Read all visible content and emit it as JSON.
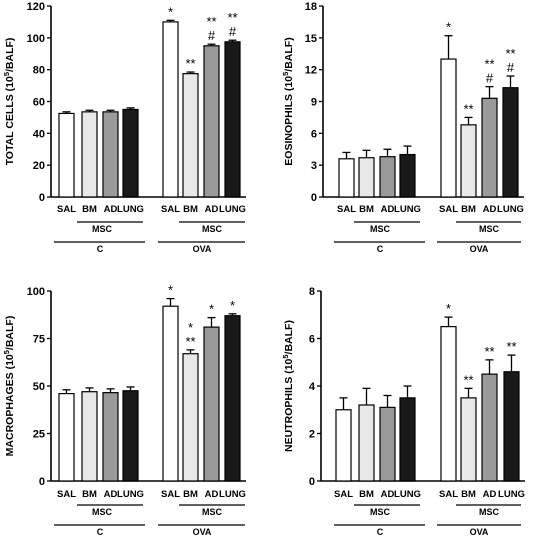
{
  "chart_data": [
    {
      "type": "bar",
      "ylabel_main": "TOTAL CELLS (10",
      "ylabel_sup": "5",
      "ylabel_end": "/BALF)",
      "ylim": [
        0,
        120
      ],
      "yticks": [
        0,
        20,
        40,
        60,
        80,
        100,
        120
      ],
      "categories": [
        "SAL",
        "BM",
        "AD",
        "LUNG",
        "SAL",
        "BM",
        "AD",
        "LUNG"
      ],
      "values": [
        52.5,
        53.5,
        53.5,
        55,
        110,
        77.5,
        95,
        97.5
      ],
      "errors": [
        1,
        1,
        1,
        1,
        1,
        1,
        1,
        1
      ],
      "fills": [
        "#ffffff",
        "#e8e8e8",
        "#9a9a9a",
        "#1a1a1a",
        "#ffffff",
        "#e8e8e8",
        "#9a9a9a",
        "#1a1a1a"
      ],
      "sig_top": [
        "",
        "",
        "",
        "",
        "*",
        "",
        "**",
        "**"
      ],
      "sig_mid": [
        "",
        "",
        "",
        "",
        "",
        "**",
        "#",
        "#"
      ],
      "group_sub_label": "MSC",
      "group_labels": [
        "C",
        "OVA"
      ]
    },
    {
      "type": "bar",
      "ylabel_main": "EOSINOPHILS (10",
      "ylabel_sup": "5",
      "ylabel_end": "/BALF)",
      "ylim": [
        0,
        18
      ],
      "yticks": [
        0,
        3,
        6,
        9,
        12,
        15,
        18
      ],
      "categories": [
        "SAL",
        "BM",
        "AD",
        "LUNG",
        "SAL",
        "BM",
        "AD",
        "LUNG"
      ],
      "values": [
        3.6,
        3.7,
        3.8,
        4.0,
        13.0,
        6.8,
        9.3,
        10.3
      ],
      "errors": [
        0.6,
        0.7,
        0.7,
        0.8,
        2.2,
        0.7,
        1.1,
        1.1
      ],
      "fills": [
        "#ffffff",
        "#e8e8e8",
        "#9a9a9a",
        "#1a1a1a",
        "#ffffff",
        "#e8e8e8",
        "#9a9a9a",
        "#1a1a1a"
      ],
      "sig_top": [
        "",
        "",
        "",
        "",
        "*",
        "",
        "**",
        "**"
      ],
      "sig_mid": [
        "",
        "",
        "",
        "",
        "",
        "**",
        "#",
        "#"
      ],
      "group_sub_label": "MSC",
      "group_labels": [
        "C",
        "OVA"
      ]
    },
    {
      "type": "bar",
      "ylabel_main": "MACROPHAGES (10",
      "ylabel_sup": "5",
      "ylabel_end": "/BALF)",
      "ylim": [
        0,
        100
      ],
      "yticks": [
        0,
        25,
        50,
        75,
        100
      ],
      "categories": [
        "SAL",
        "BM",
        "AD",
        "LUNG",
        "SAL",
        "BM",
        "AD",
        "LUNG"
      ],
      "values": [
        46,
        47,
        46.5,
        47.5,
        92,
        67,
        81,
        87
      ],
      "errors": [
        2,
        2,
        2,
        2,
        4,
        2,
        5,
        1
      ],
      "fills": [
        "#ffffff",
        "#e8e8e8",
        "#9a9a9a",
        "#1a1a1a",
        "#ffffff",
        "#e8e8e8",
        "#9a9a9a",
        "#1a1a1a"
      ],
      "sig_top": [
        "",
        "",
        "",
        "",
        "*",
        "*",
        "*",
        "*"
      ],
      "sig_mid": [
        "",
        "",
        "",
        "",
        "",
        "**",
        "",
        ""
      ],
      "group_sub_label": "MSC",
      "group_labels": [
        "C",
        "OVA"
      ]
    },
    {
      "type": "bar",
      "ylabel_main": "NEUTROPHILS (10",
      "ylabel_sup": "5",
      "ylabel_end": "/BALF)",
      "ylim": [
        0,
        8
      ],
      "yticks": [
        0,
        2,
        4,
        6,
        8
      ],
      "categories": [
        "SAL",
        "BM",
        "AD",
        "LUNG",
        "SAL",
        "BM",
        "AD",
        "LUNG"
      ],
      "values": [
        3.0,
        3.2,
        3.1,
        3.5,
        6.5,
        3.5,
        4.5,
        4.6
      ],
      "errors": [
        0.5,
        0.7,
        0.5,
        0.5,
        0.4,
        0.4,
        0.6,
        0.7
      ],
      "fills": [
        "#ffffff",
        "#e8e8e8",
        "#9a9a9a",
        "#1a1a1a",
        "#ffffff",
        "#e8e8e8",
        "#9a9a9a",
        "#1a1a1a"
      ],
      "sig_top": [
        "",
        "",
        "",
        "",
        "*",
        "",
        "",
        ""
      ],
      "sig_mid": [
        "",
        "",
        "",
        "",
        "",
        "**",
        "**",
        "**"
      ],
      "group_sub_label": "MSC",
      "group_labels": [
        "C",
        "OVA"
      ]
    }
  ]
}
